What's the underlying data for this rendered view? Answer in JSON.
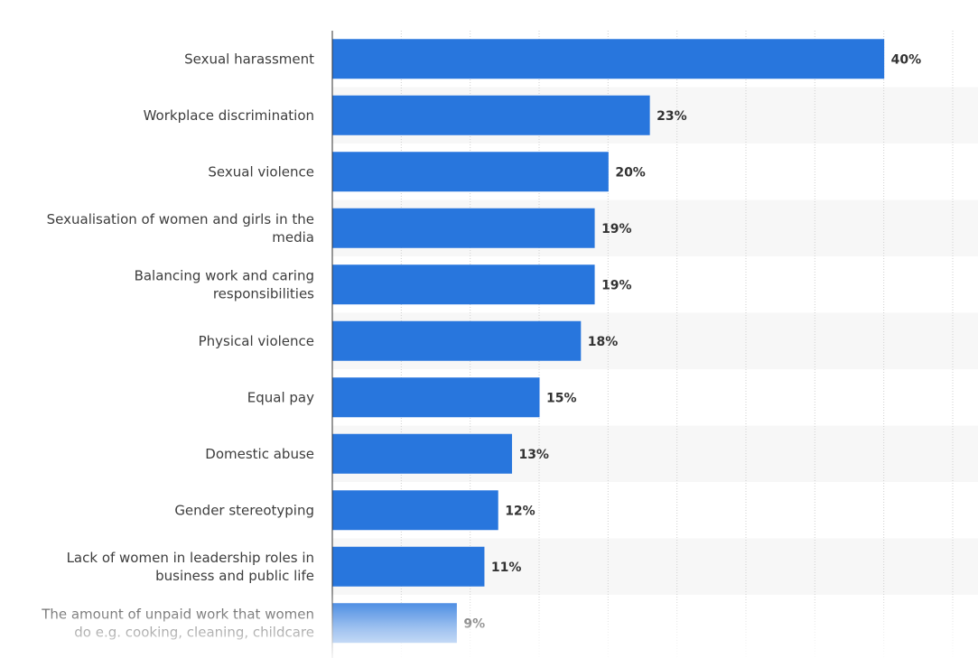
{
  "chart_data": {
    "type": "bar",
    "orientation": "horizontal",
    "categories": [
      "Sexual harassment",
      "Workplace discrimination",
      "Sexual violence",
      "Sexualisation of women and girls in the media",
      "Balancing work and caring responsibilities",
      "Physical violence",
      "Equal pay",
      "Domestic abuse",
      "Gender stereotyping",
      "Lack of women in leadership roles in business and public life",
      "The amount of unpaid work that women do e.g. cooking, cleaning, childcare"
    ],
    "category_lines": [
      [
        "Sexual harassment"
      ],
      [
        "Workplace discrimination"
      ],
      [
        "Sexual violence"
      ],
      [
        "Sexualisation of women and girls in the",
        "media"
      ],
      [
        "Balancing work and caring",
        "responsibilities"
      ],
      [
        "Physical violence"
      ],
      [
        "Equal pay"
      ],
      [
        "Domestic abuse"
      ],
      [
        "Gender stereotyping"
      ],
      [
        "Lack of women in leadership roles in",
        "business and public life"
      ],
      [
        "The amount of unpaid work that women",
        "do e.g. cooking, cleaning, childcare"
      ]
    ],
    "values": [
      40,
      23,
      20,
      19,
      19,
      18,
      15,
      13,
      12,
      11,
      9
    ],
    "value_labels": [
      "40%",
      "23%",
      "20%",
      "19%",
      "19%",
      "18%",
      "15%",
      "13%",
      "12%",
      "11%",
      "9%"
    ],
    "unit": "%",
    "xlim": [
      0,
      45
    ],
    "grid": true,
    "legend": "none",
    "colors": {
      "bar": "#2876dd",
      "alt_row": "#f7f7f7",
      "grid": "#cfcfcf",
      "axis": "#333333"
    }
  }
}
